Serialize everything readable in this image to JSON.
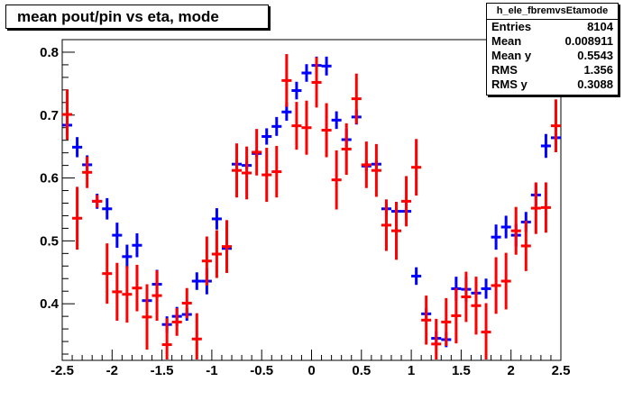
{
  "title": "mean pout/pin vs eta, mode",
  "stats": {
    "name": "h_ele_fbremvsEtamode",
    "rows": [
      {
        "key": "Entries",
        "value": "8104"
      },
      {
        "key": "Mean",
        "value": "0.008911"
      },
      {
        "key": "Mean y",
        "value": "0.5543"
      },
      {
        "key": "RMS",
        "value": "1.356"
      },
      {
        "key": "RMS y",
        "value": "0.3088"
      }
    ]
  },
  "colors": {
    "series_blue": "#0000ff",
    "series_red": "#ff0000",
    "frame": "#000000"
  },
  "chart_data": {
    "type": "scatter",
    "xlim": [
      -2.5,
      2.5
    ],
    "ylim": [
      0.31,
      0.82
    ],
    "x_ticks": [
      "-2.5",
      "-2",
      "-1.5",
      "-1",
      "-0.5",
      "0",
      "0.5",
      "1",
      "1.5",
      "2",
      "2.5"
    ],
    "y_ticks": [
      "0.4",
      "0.5",
      "0.6",
      "0.7",
      "0.8"
    ],
    "grid": false,
    "series": [
      {
        "color": "#0000ff",
        "points": [
          {
            "x": -2.45,
            "y": 0.684,
            "err": 0.015
          },
          {
            "x": -2.35,
            "y": 0.649,
            "err": 0.016
          },
          {
            "x": -2.25,
            "y": 0.621,
            "err": 0.015
          },
          {
            "x": -2.15,
            "y": 0.563,
            "err": 0.012
          },
          {
            "x": -2.05,
            "y": 0.551,
            "err": 0.017
          },
          {
            "x": -1.95,
            "y": 0.509,
            "err": 0.02
          },
          {
            "x": -1.85,
            "y": 0.475,
            "err": 0.019
          },
          {
            "x": -1.75,
            "y": 0.493,
            "err": 0.019
          },
          {
            "x": -1.65,
            "y": 0.405,
            "err": 0.015
          },
          {
            "x": -1.55,
            "y": 0.431,
            "err": 0.023
          },
          {
            "x": -1.45,
            "y": 0.367,
            "err": 0.013
          },
          {
            "x": -1.35,
            "y": 0.38,
            "err": 0.015
          },
          {
            "x": -1.25,
            "y": 0.383,
            "err": 0.01
          },
          {
            "x": -1.15,
            "y": 0.436,
            "err": 0.014
          },
          {
            "x": -1.05,
            "y": 0.436,
            "err": 0.021
          },
          {
            "x": -0.95,
            "y": 0.535,
            "err": 0.017
          },
          {
            "x": -0.85,
            "y": 0.488,
            "err": 0.01
          },
          {
            "x": -0.75,
            "y": 0.622,
            "err": 0.007
          },
          {
            "x": -0.65,
            "y": 0.62,
            "err": 0.006
          },
          {
            "x": -0.55,
            "y": 0.639,
            "err": 0.006
          },
          {
            "x": -0.45,
            "y": 0.666,
            "err": 0.013
          },
          {
            "x": -0.35,
            "y": 0.682,
            "err": 0.015
          },
          {
            "x": -0.25,
            "y": 0.705,
            "err": 0.014
          },
          {
            "x": -0.15,
            "y": 0.739,
            "err": 0.014
          },
          {
            "x": -0.05,
            "y": 0.767,
            "err": 0.014
          },
          {
            "x": 0.05,
            "y": 0.779,
            "err": 0.014
          },
          {
            "x": 0.15,
            "y": 0.778,
            "err": 0.015
          },
          {
            "x": 0.25,
            "y": 0.692,
            "err": 0.014
          },
          {
            "x": 0.35,
            "y": 0.661,
            "err": 0.017
          },
          {
            "x": 0.45,
            "y": 0.697,
            "err": 0.012
          },
          {
            "x": 0.55,
            "y": 0.619,
            "err": 0.008
          },
          {
            "x": 0.65,
            "y": 0.622,
            "err": 0.006
          },
          {
            "x": 0.75,
            "y": 0.551,
            "err": 0.01
          },
          {
            "x": 0.85,
            "y": 0.547,
            "err": 0.015
          },
          {
            "x": 0.95,
            "y": 0.547,
            "err": 0.014
          },
          {
            "x": 1.05,
            "y": 0.444,
            "err": 0.014
          },
          {
            "x": 1.15,
            "y": 0.384,
            "err": 0.009
          },
          {
            "x": 1.25,
            "y": 0.345,
            "err": 0.011
          },
          {
            "x": 1.35,
            "y": 0.343,
            "err": 0.012
          },
          {
            "x": 1.45,
            "y": 0.424,
            "err": 0.019
          },
          {
            "x": 1.55,
            "y": 0.423,
            "err": 0.02
          },
          {
            "x": 1.65,
            "y": 0.417,
            "err": 0.017
          },
          {
            "x": 1.75,
            "y": 0.424,
            "err": 0.016
          },
          {
            "x": 1.85,
            "y": 0.506,
            "err": 0.02
          },
          {
            "x": 1.95,
            "y": 0.522,
            "err": 0.018
          },
          {
            "x": 2.05,
            "y": 0.509,
            "err": 0.018
          },
          {
            "x": 2.15,
            "y": 0.53,
            "err": 0.016
          },
          {
            "x": 2.25,
            "y": 0.573,
            "err": 0.018
          },
          {
            "x": 2.35,
            "y": 0.651,
            "err": 0.019
          },
          {
            "x": 2.45,
            "y": 0.664,
            "err": 0.015
          }
        ]
      },
      {
        "color": "#ff0000",
        "points": [
          {
            "x": -2.45,
            "y": 0.701,
            "err": 0.04
          },
          {
            "x": -2.35,
            "y": 0.536,
            "err": 0.05
          },
          {
            "x": -2.25,
            "y": 0.609,
            "err": 0.025
          },
          {
            "x": -2.15,
            "y": 0.563,
            "err": 0.01
          },
          {
            "x": -2.05,
            "y": 0.448,
            "err": 0.048
          },
          {
            "x": -1.95,
            "y": 0.419,
            "err": 0.046
          },
          {
            "x": -1.85,
            "y": 0.415,
            "err": 0.045
          },
          {
            "x": -1.75,
            "y": 0.425,
            "err": 0.037
          },
          {
            "x": -1.65,
            "y": 0.379,
            "err": 0.052
          },
          {
            "x": -1.55,
            "y": 0.413,
            "err": 0.04
          },
          {
            "x": -1.45,
            "y": 0.335,
            "err": 0.042
          },
          {
            "x": -1.35,
            "y": 0.371,
            "err": 0.022
          },
          {
            "x": -1.25,
            "y": 0.401,
            "err": 0.024
          },
          {
            "x": -1.15,
            "y": 0.344,
            "err": 0.041
          },
          {
            "x": -1.05,
            "y": 0.468,
            "err": 0.039
          },
          {
            "x": -0.95,
            "y": 0.479,
            "err": 0.038
          },
          {
            "x": -0.85,
            "y": 0.491,
            "err": 0.042
          },
          {
            "x": -0.75,
            "y": 0.612,
            "err": 0.043
          },
          {
            "x": -0.65,
            "y": 0.608,
            "err": 0.042
          },
          {
            "x": -0.55,
            "y": 0.641,
            "err": 0.037
          },
          {
            "x": -0.45,
            "y": 0.605,
            "err": 0.043
          },
          {
            "x": -0.35,
            "y": 0.61,
            "err": 0.041
          },
          {
            "x": -0.25,
            "y": 0.755,
            "err": 0.042
          },
          {
            "x": -0.15,
            "y": 0.683,
            "err": 0.038
          },
          {
            "x": -0.05,
            "y": 0.68,
            "err": 0.043
          },
          {
            "x": 0.05,
            "y": 0.752,
            "err": 0.04
          },
          {
            "x": 0.15,
            "y": 0.676,
            "err": 0.043
          },
          {
            "x": 0.25,
            "y": 0.597,
            "err": 0.047
          },
          {
            "x": 0.35,
            "y": 0.646,
            "err": 0.041
          },
          {
            "x": 0.45,
            "y": 0.726,
            "err": 0.04
          },
          {
            "x": 0.55,
            "y": 0.621,
            "err": 0.037
          },
          {
            "x": 0.65,
            "y": 0.612,
            "err": 0.042
          },
          {
            "x": 0.75,
            "y": 0.525,
            "err": 0.041
          },
          {
            "x": 0.85,
            "y": 0.516,
            "err": 0.046
          },
          {
            "x": 0.95,
            "y": 0.563,
            "err": 0.04
          },
          {
            "x": 1.05,
            "y": 0.617,
            "err": 0.045
          },
          {
            "x": 1.15,
            "y": 0.374,
            "err": 0.039
          },
          {
            "x": 1.25,
            "y": 0.336,
            "err": 0.04
          },
          {
            "x": 1.35,
            "y": 0.371,
            "err": 0.038
          },
          {
            "x": 1.45,
            "y": 0.381,
            "err": 0.044
          },
          {
            "x": 1.55,
            "y": 0.411,
            "err": 0.04
          },
          {
            "x": 1.65,
            "y": 0.397,
            "err": 0.046
          },
          {
            "x": 1.75,
            "y": 0.355,
            "err": 0.046
          },
          {
            "x": 1.85,
            "y": 0.429,
            "err": 0.045
          },
          {
            "x": 1.95,
            "y": 0.436,
            "err": 0.045
          },
          {
            "x": 2.05,
            "y": 0.516,
            "err": 0.038
          },
          {
            "x": 2.15,
            "y": 0.492,
            "err": 0.04
          },
          {
            "x": 2.25,
            "y": 0.552,
            "err": 0.041
          },
          {
            "x": 2.35,
            "y": 0.553,
            "err": 0.04
          },
          {
            "x": 2.45,
            "y": 0.683,
            "err": 0.042
          }
        ]
      }
    ]
  }
}
